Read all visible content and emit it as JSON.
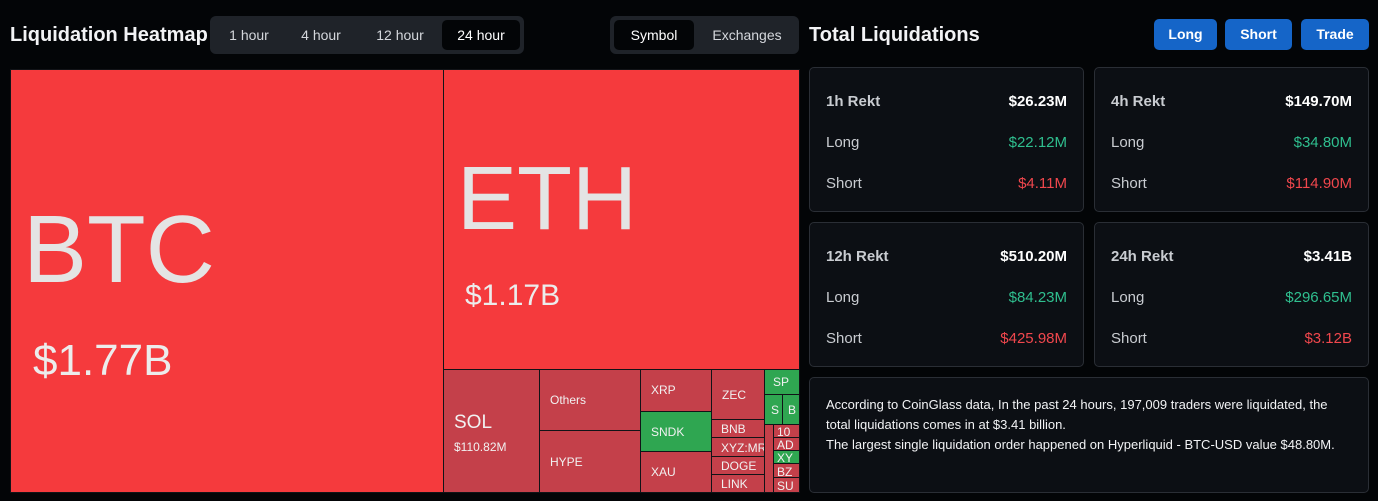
{
  "heatmap": {
    "title": "Liquidation Heatmap",
    "time_tabs": [
      "1 hour",
      "4 hour",
      "12 hour",
      "24 hour"
    ],
    "active_time_tab": "24 hour",
    "view_tabs": [
      "Symbol",
      "Exchanges"
    ],
    "active_view_tab": "Symbol",
    "cells": [
      {
        "symbol": "BTC",
        "value": "$1.77B"
      },
      {
        "symbol": "ETH",
        "value": "$1.17B"
      },
      {
        "symbol": "SOL",
        "value": "$110.82M"
      },
      {
        "symbol": "Others"
      },
      {
        "symbol": "HYPE"
      },
      {
        "symbol": "XRP"
      },
      {
        "symbol": "SNDK"
      },
      {
        "symbol": "XAU"
      },
      {
        "symbol": "ZEC"
      },
      {
        "symbol": "BNB"
      },
      {
        "symbol": "XYZ:MR"
      },
      {
        "symbol": "DOGE"
      },
      {
        "symbol": "LINK"
      },
      {
        "symbol": "SP"
      },
      {
        "symbol": "S"
      },
      {
        "symbol": "B"
      },
      {
        "symbol": "10"
      },
      {
        "symbol": "AD"
      },
      {
        "symbol": "XY"
      },
      {
        "symbol": "BZ"
      },
      {
        "symbol": "SU"
      }
    ]
  },
  "total": {
    "title": "Total Liquidations",
    "buttons": {
      "long": "Long",
      "short": "Short",
      "trade": "Trade"
    },
    "cards": [
      {
        "label": "1h Rekt",
        "total": "$26.23M",
        "long_label": "Long",
        "long": "$22.12M",
        "short_label": "Short",
        "short": "$4.11M"
      },
      {
        "label": "4h Rekt",
        "total": "$149.70M",
        "long_label": "Long",
        "long": "$34.80M",
        "short_label": "Short",
        "short": "$114.90M"
      },
      {
        "label": "12h Rekt",
        "total": "$510.20M",
        "long_label": "Long",
        "long": "$84.23M",
        "short_label": "Short",
        "short": "$425.98M"
      },
      {
        "label": "24h Rekt",
        "total": "$3.41B",
        "long_label": "Long",
        "long": "$296.65M",
        "short_label": "Short",
        "short": "$3.12B"
      }
    ],
    "summary": {
      "line1": "According to CoinGlass data, In the past 24 hours, 197,009 traders were liquidated, the total liquidations comes in at $3.41 billion.",
      "line2": "The largest single liquidation order happened on Hyperliquid - BTC-USD value $48.80M."
    }
  },
  "colors": {
    "background": "#030507",
    "heat_red": "#f53a3d",
    "heat_dark_red": "#c4404a",
    "heat_green": "#2fa651",
    "accent_blue": "#1565c8",
    "positive": "#2fbf8f",
    "negative": "#f0474d"
  }
}
